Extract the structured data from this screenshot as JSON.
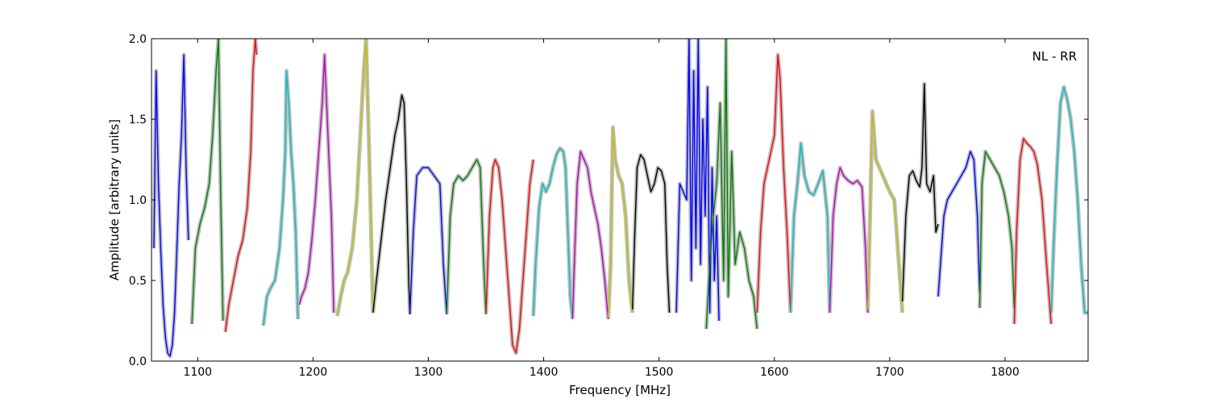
{
  "chart_data": {
    "type": "line",
    "title": "",
    "xlabel": "Frequency [MHz]",
    "ylabel": "Amplitude [arbitrary units]",
    "xlim": [
      1060,
      1872
    ],
    "ylim": [
      0.0,
      2.0
    ],
    "xticks": [
      "1100",
      "1200",
      "1300",
      "1400",
      "1500",
      "1600",
      "1700",
      "1800"
    ],
    "yticks": [
      "0.0",
      "0.5",
      "1.0",
      "1.5",
      "2.0"
    ],
    "annotation": "NL - RR",
    "grid": false,
    "reference_color": "#bfbfbf",
    "series": [
      {
        "color": "#0000ff",
        "x": [
          1062,
          1064,
          1066,
          1068,
          1070,
          1072,
          1074,
          1076,
          1078,
          1080,
          1082,
          1084,
          1086,
          1088,
          1090,
          1092
        ],
        "y": [
          0.7,
          1.8,
          1.1,
          0.7,
          0.35,
          0.15,
          0.05,
          0.03,
          0.1,
          0.3,
          0.7,
          1.1,
          1.4,
          1.9,
          1.2,
          0.75
        ]
      },
      {
        "color": "#008000",
        "x": [
          1095,
          1098,
          1102,
          1106,
          1110,
          1113,
          1116,
          1118,
          1120,
          1122
        ],
        "y": [
          0.23,
          0.7,
          0.85,
          0.95,
          1.1,
          1.4,
          1.8,
          2.0,
          1.0,
          0.25
        ]
      },
      {
        "color": "#ff0000",
        "x": [
          1124,
          1127,
          1131,
          1135,
          1139,
          1143,
          1146,
          1148,
          1150,
          1151
        ],
        "y": [
          0.18,
          0.35,
          0.5,
          0.65,
          0.75,
          0.95,
          1.3,
          1.8,
          2.0,
          1.9
        ]
      },
      {
        "color": "#00bfbf",
        "x": [
          1157,
          1160,
          1163,
          1167,
          1171,
          1174,
          1176,
          1177,
          1179,
          1181,
          1183,
          1185,
          1187
        ],
        "y": [
          0.22,
          0.4,
          0.45,
          0.5,
          0.7,
          1.0,
          1.3,
          1.8,
          1.6,
          1.3,
          1.1,
          0.8,
          0.26
        ]
      },
      {
        "color": "#bf00bf",
        "x": [
          1188,
          1190,
          1193,
          1196,
          1199,
          1202,
          1205,
          1208,
          1210,
          1213,
          1216,
          1218
        ],
        "y": [
          0.35,
          0.4,
          0.45,
          0.55,
          0.75,
          1.0,
          1.3,
          1.6,
          1.9,
          1.4,
          0.9,
          0.3
        ]
      },
      {
        "color": "#bfbf00",
        "x": [
          1221,
          1224,
          1227,
          1230,
          1234,
          1238,
          1241,
          1244,
          1246,
          1249,
          1252
        ],
        "y": [
          0.28,
          0.4,
          0.5,
          0.55,
          0.7,
          1.0,
          1.4,
          1.8,
          2.0,
          1.2,
          0.3
        ]
      },
      {
        "color": "#000000",
        "x": [
          1252,
          1255,
          1259,
          1263,
          1267,
          1271,
          1274,
          1277,
          1279,
          1281,
          1283,
          1284
        ],
        "y": [
          0.3,
          0.5,
          0.75,
          1.0,
          1.2,
          1.4,
          1.5,
          1.65,
          1.6,
          1.1,
          0.5,
          0.29
        ]
      },
      {
        "color": "#0000ff",
        "x": [
          1284,
          1287,
          1290,
          1295,
          1300,
          1305,
          1310,
          1313,
          1316
        ],
        "y": [
          0.3,
          0.8,
          1.15,
          1.2,
          1.2,
          1.15,
          1.1,
          0.6,
          0.29
        ]
      },
      {
        "color": "#008000",
        "x": [
          1316,
          1319,
          1322,
          1326,
          1330,
          1334,
          1338,
          1342,
          1345,
          1348,
          1350
        ],
        "y": [
          0.3,
          0.9,
          1.1,
          1.15,
          1.12,
          1.15,
          1.2,
          1.25,
          1.2,
          0.6,
          0.29
        ]
      },
      {
        "color": "#ff0000",
        "x": [
          1350,
          1353,
          1356,
          1358,
          1361,
          1364,
          1367,
          1370,
          1373,
          1376,
          1379,
          1382,
          1385,
          1388,
          1391
        ],
        "y": [
          0.3,
          0.9,
          1.2,
          1.25,
          1.2,
          1.0,
          0.7,
          0.4,
          0.1,
          0.05,
          0.2,
          0.5,
          0.8,
          1.1,
          1.25
        ]
      },
      {
        "color": "#00bfbf",
        "x": [
          1391,
          1393,
          1396,
          1399,
          1402,
          1405,
          1408,
          1411,
          1414,
          1417,
          1419,
          1421,
          1423,
          1425
        ],
        "y": [
          0.28,
          0.6,
          0.95,
          1.1,
          1.05,
          1.1,
          1.2,
          1.28,
          1.32,
          1.3,
          1.2,
          0.8,
          0.4,
          0.27
        ]
      },
      {
        "color": "#bf00bf",
        "x": [
          1425,
          1427,
          1429,
          1432,
          1435,
          1438,
          1441,
          1444,
          1447,
          1450,
          1453,
          1456
        ],
        "y": [
          0.26,
          0.7,
          1.1,
          1.3,
          1.25,
          1.2,
          1.05,
          0.95,
          0.85,
          0.7,
          0.5,
          0.26
        ]
      },
      {
        "color": "#bfbf00",
        "x": [
          1456,
          1458,
          1460,
          1462,
          1465,
          1468,
          1471,
          1474,
          1477
        ],
        "y": [
          0.27,
          0.6,
          1.45,
          1.25,
          1.15,
          1.1,
          0.9,
          0.5,
          0.3
        ]
      },
      {
        "color": "#000000",
        "x": [
          1477,
          1479,
          1481,
          1484,
          1487,
          1490,
          1493,
          1496,
          1499,
          1502,
          1505,
          1507,
          1509
        ],
        "y": [
          0.32,
          0.8,
          1.2,
          1.28,
          1.25,
          1.15,
          1.05,
          1.1,
          1.2,
          1.18,
          1.1,
          0.6,
          0.3
        ]
      },
      {
        "color": "#0000ff",
        "x": [
          1515,
          1518,
          1521,
          1524,
          1526,
          1528,
          1530,
          1532,
          1534,
          1536,
          1538,
          1540,
          1542,
          1544,
          1546,
          1548,
          1550,
          1552
        ],
        "y": [
          0.3,
          1.1,
          1.05,
          1.0,
          2.0,
          0.5,
          1.8,
          0.7,
          2.0,
          0.6,
          1.5,
          0.9,
          1.7,
          0.3,
          1.2,
          0.5,
          0.9,
          0.25
        ]
      },
      {
        "color": "#008000",
        "x": [
          1541,
          1544,
          1547,
          1550,
          1553,
          1556,
          1558,
          1560,
          1563,
          1566,
          1570,
          1574,
          1578,
          1582,
          1585
        ],
        "y": [
          0.2,
          0.6,
          0.9,
          1.1,
          1.6,
          0.5,
          2.0,
          0.4,
          1.3,
          0.6,
          0.8,
          0.7,
          0.5,
          0.4,
          0.2
        ]
      },
      {
        "color": "#ff0000",
        "x": [
          1585,
          1588,
          1591,
          1594,
          1597,
          1600,
          1603,
          1605,
          1608,
          1611,
          1614
        ],
        "y": [
          0.3,
          0.8,
          1.1,
          1.2,
          1.3,
          1.4,
          1.9,
          1.75,
          1.2,
          0.8,
          0.3
        ]
      },
      {
        "color": "#00bfbf",
        "x": [
          1614,
          1617,
          1620,
          1623,
          1626,
          1630,
          1634,
          1638,
          1642,
          1646,
          1648
        ],
        "y": [
          0.3,
          0.9,
          1.1,
          1.35,
          1.15,
          1.05,
          1.03,
          1.1,
          1.18,
          0.9,
          0.3
        ]
      },
      {
        "color": "#bf00bf",
        "x": [
          1648,
          1651,
          1654,
          1657,
          1660,
          1664,
          1668,
          1672,
          1676,
          1679,
          1681
        ],
        "y": [
          0.3,
          0.9,
          1.1,
          1.2,
          1.15,
          1.12,
          1.1,
          1.12,
          1.08,
          0.7,
          0.3
        ]
      },
      {
        "color": "#bfbf00",
        "x": [
          1681,
          1683,
          1685,
          1688,
          1691,
          1694,
          1697,
          1700,
          1704,
          1708,
          1711
        ],
        "y": [
          0.32,
          0.9,
          1.55,
          1.25,
          1.2,
          1.15,
          1.1,
          1.05,
          1.0,
          0.6,
          0.3
        ]
      },
      {
        "color": "#000000",
        "x": [
          1711,
          1714,
          1717,
          1720,
          1723,
          1726,
          1728,
          1730,
          1732,
          1735,
          1738,
          1740,
          1742
        ],
        "y": [
          0.37,
          0.9,
          1.15,
          1.18,
          1.12,
          1.08,
          1.2,
          1.72,
          1.1,
          1.05,
          1.15,
          0.8,
          0.85
        ]
      },
      {
        "color": "#0000ff",
        "x": [
          1742,
          1744,
          1747,
          1750,
          1754,
          1758,
          1762,
          1766,
          1770,
          1773,
          1776,
          1778
        ],
        "y": [
          0.4,
          0.6,
          0.9,
          1.0,
          1.05,
          1.1,
          1.15,
          1.2,
          1.3,
          1.25,
          0.9,
          0.43
        ]
      },
      {
        "color": "#008000",
        "x": [
          1778,
          1780,
          1783,
          1787,
          1791,
          1795,
          1799,
          1803,
          1806,
          1808
        ],
        "y": [
          0.33,
          1.1,
          1.3,
          1.25,
          1.2,
          1.15,
          1.05,
          0.9,
          0.7,
          0.33
        ]
      },
      {
        "color": "#ff0000",
        "x": [
          1808,
          1810,
          1813,
          1816,
          1819,
          1822,
          1825,
          1828,
          1832,
          1836,
          1840
        ],
        "y": [
          0.23,
          0.8,
          1.25,
          1.38,
          1.35,
          1.33,
          1.3,
          1.22,
          1.0,
          0.6,
          0.23
        ]
      },
      {
        "color": "#00bfbf",
        "x": [
          1840,
          1842,
          1845,
          1848,
          1851,
          1854,
          1857,
          1860,
          1863,
          1866,
          1869,
          1872
        ],
        "y": [
          0.3,
          0.7,
          1.2,
          1.6,
          1.7,
          1.62,
          1.5,
          1.3,
          1.0,
          0.6,
          0.3,
          0.3
        ]
      }
    ]
  }
}
